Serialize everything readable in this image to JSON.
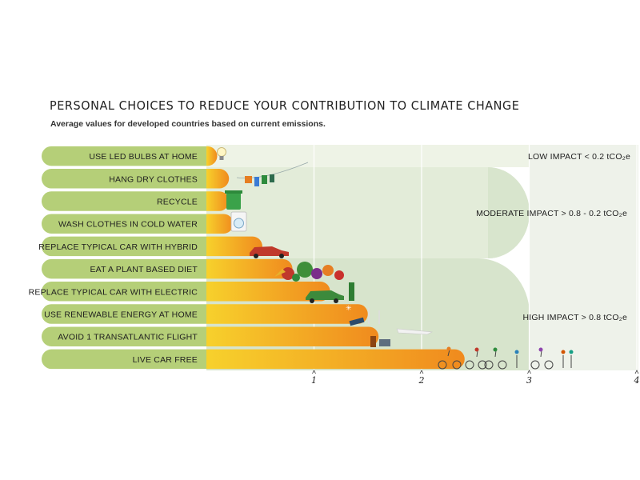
{
  "header": {
    "title": "PERSONAL CHOICES TO REDUCE YOUR CONTRIBUTION TO CLIMATE CHANGE",
    "subtitle": "Average values for developed countries based on current emissions."
  },
  "impact_zones": {
    "low": "LOW IMPACT < 0.2 tCO₂e",
    "moderate": "MODERATE IMPACT > 0.8 - 0.2 tCO₂e",
    "high": "HIGH IMPACT > 0.8 tCO₂e"
  },
  "colors": {
    "label_pill": "#b5cf78",
    "bar_start": "#f7d12c",
    "bar_end": "#f08a1e",
    "zone_light": "#e6eedf",
    "zone_dark": "#c9d9bf",
    "icon_accents": [
      "#2e8b3d",
      "#c0392b",
      "#e67e22",
      "#2980b9"
    ]
  },
  "icons": [
    "light-bulb-icon",
    "clothesline-icon",
    "recycle-bin-icon",
    "washing-machine-icon",
    "red-car-icon",
    "vegetables-icon",
    "electric-car-icon",
    "renewable-energy-icon",
    "airplane-icon",
    "cyclists-icon"
  ],
  "chart_data": {
    "type": "bar",
    "orientation": "horizontal",
    "title": "PERSONAL CHOICES TO REDUCE YOUR CONTRIBUTION TO CLIMATE CHANGE",
    "subtitle": "Average values for developed countries based on current emissions.",
    "categories": [
      "USE LED BULBS AT HOME",
      "HANG DRY CLOTHES",
      "RECYCLE",
      "WASH CLOTHES IN COLD WATER",
      "REPLACE TYPICAL CAR WITH HYBRID",
      "EAT A PLANT BASED DIET",
      "REPLACE TYPICAL CAR WITH ELECTRIC",
      "USE RENEWABLE ENERGY AT HOME",
      "AVOID 1 TRANSATLANTIC FLIGHT",
      "LIVE CAR FREE"
    ],
    "values": [
      0.1,
      0.21,
      0.21,
      0.25,
      0.52,
      0.8,
      1.15,
      1.5,
      1.6,
      2.4
    ],
    "xticks": [
      "1",
      "2",
      "3",
      "4"
    ],
    "xlim": [
      0,
      4
    ],
    "grid": true,
    "legend": "right"
  }
}
